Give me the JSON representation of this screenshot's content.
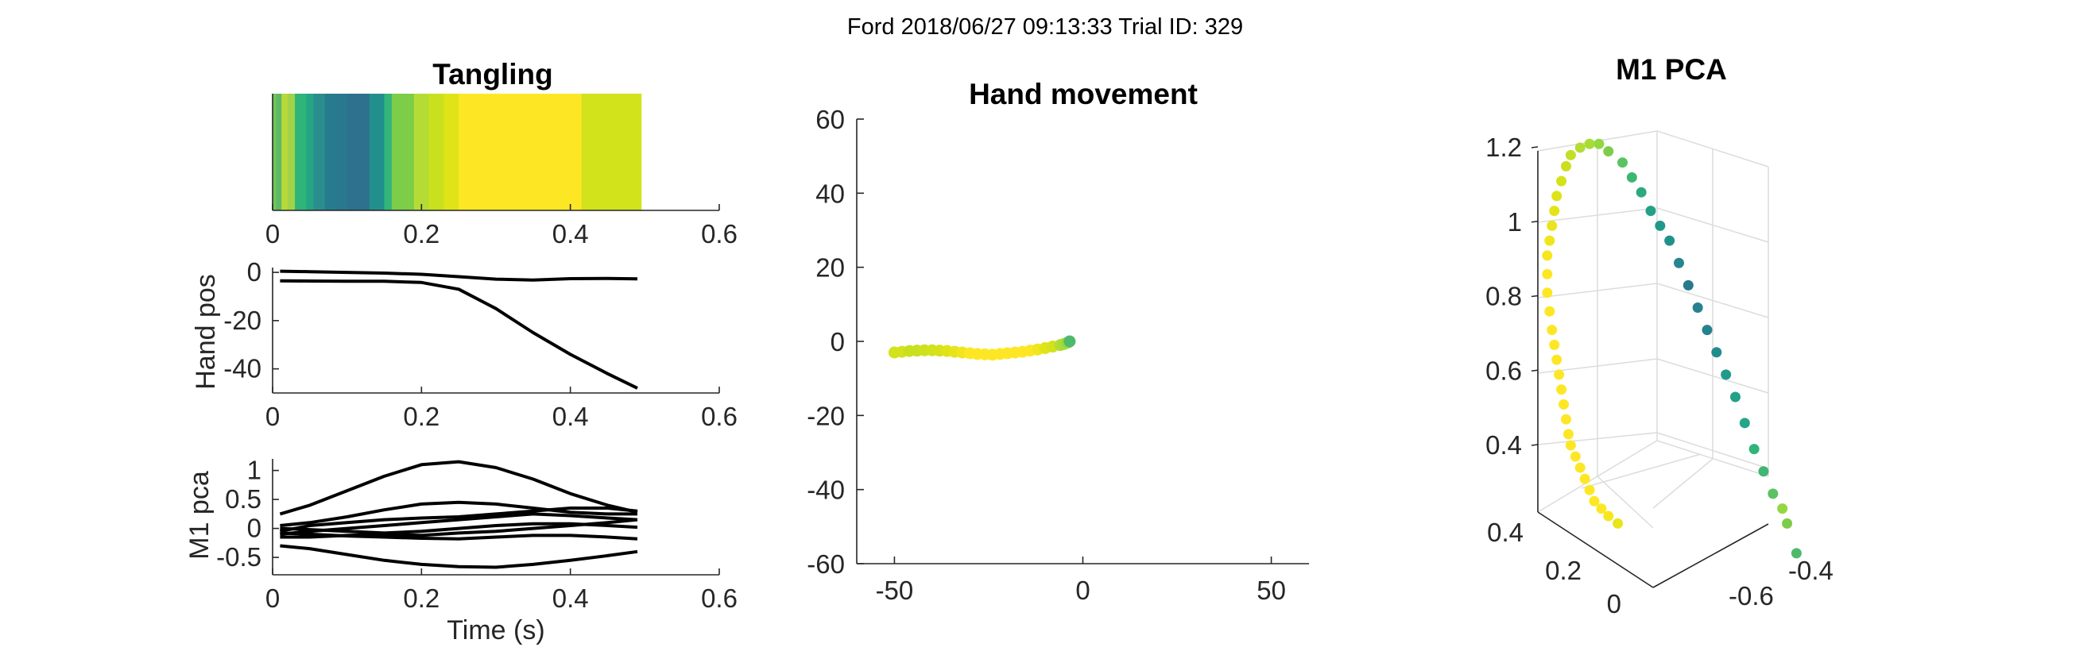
{
  "suptitle": "Ford 2018/06/27 09:13:33 Trial ID: 329",
  "chart_data": [
    {
      "id": "tangling",
      "type": "heatmap",
      "title": "Tangling",
      "xlim": [
        0,
        0.6
      ],
      "xticks": [
        "0",
        "0.2",
        "0.4",
        "0.6"
      ],
      "band_x_end": 0.495,
      "colors": [
        "#6fc55c",
        "#5cb966",
        "#b9d93a",
        "#a1d24a",
        "#2fb47a",
        "#25a585",
        "#2a8f8c",
        "#277b8e",
        "#2a788e",
        "#2d718e",
        "#21908c",
        "#31b57b",
        "#7dcd49",
        "#b5dc35",
        "#c9e01f",
        "#e0e317",
        "#fde725",
        "#fde725",
        "#fde725",
        "#d2e21b",
        "#d2e21b",
        "#d2e21b"
      ],
      "breaks": [
        0,
        0.005,
        0.012,
        0.02,
        0.03,
        0.045,
        0.055,
        0.07,
        0.085,
        0.1,
        0.13,
        0.15,
        0.16,
        0.19,
        0.21,
        0.23,
        0.25,
        0.3,
        0.35,
        0.415,
        0.45,
        0.48,
        0.495
      ]
    },
    {
      "id": "hand_pos",
      "type": "line",
      "ylabel": "Hand pos",
      "xlim": [
        0,
        0.6
      ],
      "ylim": [
        -50,
        2
      ],
      "xticks": [
        "0",
        "0.2",
        "0.4",
        "0.6"
      ],
      "yticks": [
        "0",
        "-20",
        "-40"
      ],
      "color": "#000000",
      "x": [
        0.01,
        0.05,
        0.1,
        0.15,
        0.2,
        0.25,
        0.3,
        0.35,
        0.4,
        0.45,
        0.49
      ],
      "series": [
        {
          "values": [
            0.5,
            0.3,
            0,
            -0.3,
            -0.8,
            -1.8,
            -2.8,
            -3.2,
            -2.6,
            -2.5,
            -2.7
          ]
        },
        {
          "values": [
            -3.5,
            -3.6,
            -3.7,
            -3.7,
            -4.2,
            -7,
            -15,
            -25,
            -34,
            -42,
            -48
          ]
        }
      ]
    },
    {
      "id": "m1_pca",
      "type": "line",
      "ylabel": "M1 pca",
      "xlabel": "Time (s)",
      "xlim": [
        0,
        0.6
      ],
      "ylim": [
        -0.8,
        1.2
      ],
      "xticks": [
        "0",
        "0.2",
        "0.4",
        "0.6"
      ],
      "yticks": [
        "1",
        "0.5",
        "0",
        "-0.5"
      ],
      "color": "#000000",
      "x": [
        0.01,
        0.05,
        0.1,
        0.15,
        0.2,
        0.25,
        0.3,
        0.35,
        0.4,
        0.45,
        0.49
      ],
      "series": [
        {
          "values": [
            0.25,
            0.4,
            0.65,
            0.9,
            1.1,
            1.15,
            1.05,
            0.85,
            0.6,
            0.4,
            0.28
          ]
        },
        {
          "values": [
            0.05,
            0.1,
            0.2,
            0.32,
            0.42,
            0.45,
            0.42,
            0.35,
            0.28,
            0.25,
            0.25
          ]
        },
        {
          "values": [
            -0.05,
            0.05,
            0.1,
            0.15,
            0.18,
            0.2,
            0.25,
            0.3,
            0.35,
            0.35,
            0.3
          ]
        },
        {
          "values": [
            -0.1,
            -0.05,
            0,
            0.05,
            0.1,
            0.15,
            0.2,
            0.25,
            0.22,
            0.18,
            0.15
          ]
        },
        {
          "values": [
            0,
            -0.02,
            -0.05,
            -0.08,
            -0.05,
            0,
            0.05,
            0.08,
            0.08,
            0.05,
            0.02
          ]
        },
        {
          "values": [
            -0.15,
            -0.15,
            -0.12,
            -0.1,
            -0.12,
            -0.08,
            -0.05,
            0,
            0.05,
            0.1,
            0.15
          ]
        },
        {
          "values": [
            -0.08,
            -0.1,
            -0.13,
            -0.15,
            -0.17,
            -0.18,
            -0.15,
            -0.12,
            -0.12,
            -0.15,
            -0.18
          ]
        },
        {
          "values": [
            -0.3,
            -0.35,
            -0.45,
            -0.55,
            -0.62,
            -0.66,
            -0.67,
            -0.62,
            -0.55,
            -0.47,
            -0.4
          ]
        }
      ]
    },
    {
      "id": "hand_movement",
      "type": "scatter",
      "title": "Hand movement",
      "xlim": [
        -60,
        60
      ],
      "ylim": [
        -60,
        60
      ],
      "xticks": [
        "-50",
        "0",
        "50"
      ],
      "yticks": [
        "60",
        "40",
        "20",
        "0",
        "-20",
        "-40",
        "-60"
      ],
      "start_color": "#4fb96b",
      "x": [
        -50,
        -48,
        -46,
        -44,
        -42,
        -40,
        -38,
        -36,
        -34,
        -32,
        -30,
        -28,
        -26,
        -24,
        -22,
        -20,
        -18,
        -16,
        -14,
        -12,
        -10,
        -8,
        -6,
        -5,
        -4,
        -3.5
      ],
      "y": [
        -3,
        -2.8,
        -2.6,
        -2.5,
        -2.4,
        -2.4,
        -2.5,
        -2.6,
        -2.8,
        -3,
        -3.2,
        -3.4,
        -3.5,
        -3.6,
        -3.4,
        -3.2,
        -3,
        -2.8,
        -2.5,
        -2.2,
        -1.8,
        -1.4,
        -1,
        -0.7,
        -0.3,
        0
      ],
      "colors": [
        "#d2e21b",
        "#d2e21b",
        "#c9e01f",
        "#c9e01f",
        "#cde11d",
        "#d2e21b",
        "#d8e219",
        "#e0e317",
        "#e7e419",
        "#f1e51d",
        "#fde725",
        "#fde725",
        "#fde725",
        "#fde725",
        "#fde725",
        "#fde725",
        "#fde725",
        "#fde725",
        "#fde725",
        "#f1e51d",
        "#e0e317",
        "#d2e21b",
        "#b5dc35",
        "#a8db34",
        "#93d741",
        "#4fb96b"
      ]
    },
    {
      "id": "m1_pca_3d",
      "type": "scatter",
      "title": "M1 PCA",
      "zlim": [
        0.3,
        1.2
      ],
      "zticks": [
        "1.2",
        "1",
        "0.8",
        "0.6",
        "0.4"
      ],
      "yticks": [
        "0.4",
        "0.2",
        "0"
      ],
      "xticks": [
        "-0.4",
        "-0.6"
      ],
      "projected_values": [
        [
          1.35,
          0.3
        ],
        [
          1.33,
          0.38
        ],
        [
          1.32,
          0.42
        ],
        [
          1.3,
          0.46
        ],
        [
          1.28,
          0.52
        ],
        [
          1.26,
          0.58
        ],
        [
          1.24,
          0.65
        ],
        [
          1.22,
          0.72
        ],
        [
          1.2,
          0.78
        ],
        [
          1.18,
          0.84
        ],
        [
          1.16,
          0.9
        ],
        [
          1.14,
          0.96
        ],
        [
          1.12,
          1.02
        ],
        [
          1.1,
          1.08
        ],
        [
          1.08,
          1.14
        ],
        [
          1.06,
          1.18
        ],
        [
          1.04,
          1.22
        ],
        [
          1.02,
          1.27
        ],
        [
          1.0,
          1.31
        ],
        [
          0.98,
          1.35
        ],
        [
          0.95,
          1.38
        ],
        [
          0.93,
          1.4
        ],
        [
          0.91,
          1.4
        ],
        [
          0.89,
          1.39
        ],
        [
          0.87,
          1.37
        ],
        [
          0.86,
          1.34
        ],
        [
          0.85,
          1.3
        ],
        [
          0.84,
          1.26
        ],
        [
          0.835,
          1.22
        ],
        [
          0.83,
          1.18
        ],
        [
          0.825,
          1.14
        ],
        [
          0.82,
          1.1
        ],
        [
          0.82,
          1.05
        ],
        [
          0.82,
          1.0
        ],
        [
          0.825,
          0.95
        ],
        [
          0.83,
          0.9
        ],
        [
          0.835,
          0.86
        ],
        [
          0.84,
          0.82
        ],
        [
          0.845,
          0.78
        ],
        [
          0.85,
          0.74
        ],
        [
          0.855,
          0.7
        ],
        [
          0.86,
          0.66
        ],
        [
          0.865,
          0.62
        ],
        [
          0.87,
          0.59
        ],
        [
          0.88,
          0.56
        ],
        [
          0.89,
          0.53
        ],
        [
          0.9,
          0.5
        ],
        [
          0.91,
          0.47
        ],
        [
          0.92,
          0.44
        ],
        [
          0.935,
          0.42
        ],
        [
          0.95,
          0.4
        ],
        [
          0.97,
          0.38
        ]
      ],
      "colors": [
        "#4fb96b",
        "#7ccc49",
        "#93d741",
        "#5cc163",
        "#3fb673",
        "#2fb47a",
        "#25a585",
        "#23a088",
        "#219a8b",
        "#228c8d",
        "#26828e",
        "#27818e",
        "#2a788e",
        "#26858e",
        "#21918c",
        "#20998b",
        "#22a186",
        "#2ba97f",
        "#3cb676",
        "#5ac463",
        "#7dcd49",
        "#93d741",
        "#a8db34",
        "#b5dc35",
        "#c2df23",
        "#ccdf1c",
        "#d4e21a",
        "#dde318",
        "#e3e418",
        "#e9e51a",
        "#f1e51d",
        "#f6e620",
        "#fde725",
        "#fde725",
        "#fde725",
        "#fde725",
        "#fde725",
        "#fde725",
        "#fde725",
        "#fde725",
        "#fde725",
        "#fde725",
        "#fde725",
        "#fde725",
        "#fde725",
        "#fde725",
        "#fde725",
        "#fde725",
        "#fde725",
        "#fde725",
        "#f6e620",
        "#e9e51a"
      ]
    }
  ]
}
